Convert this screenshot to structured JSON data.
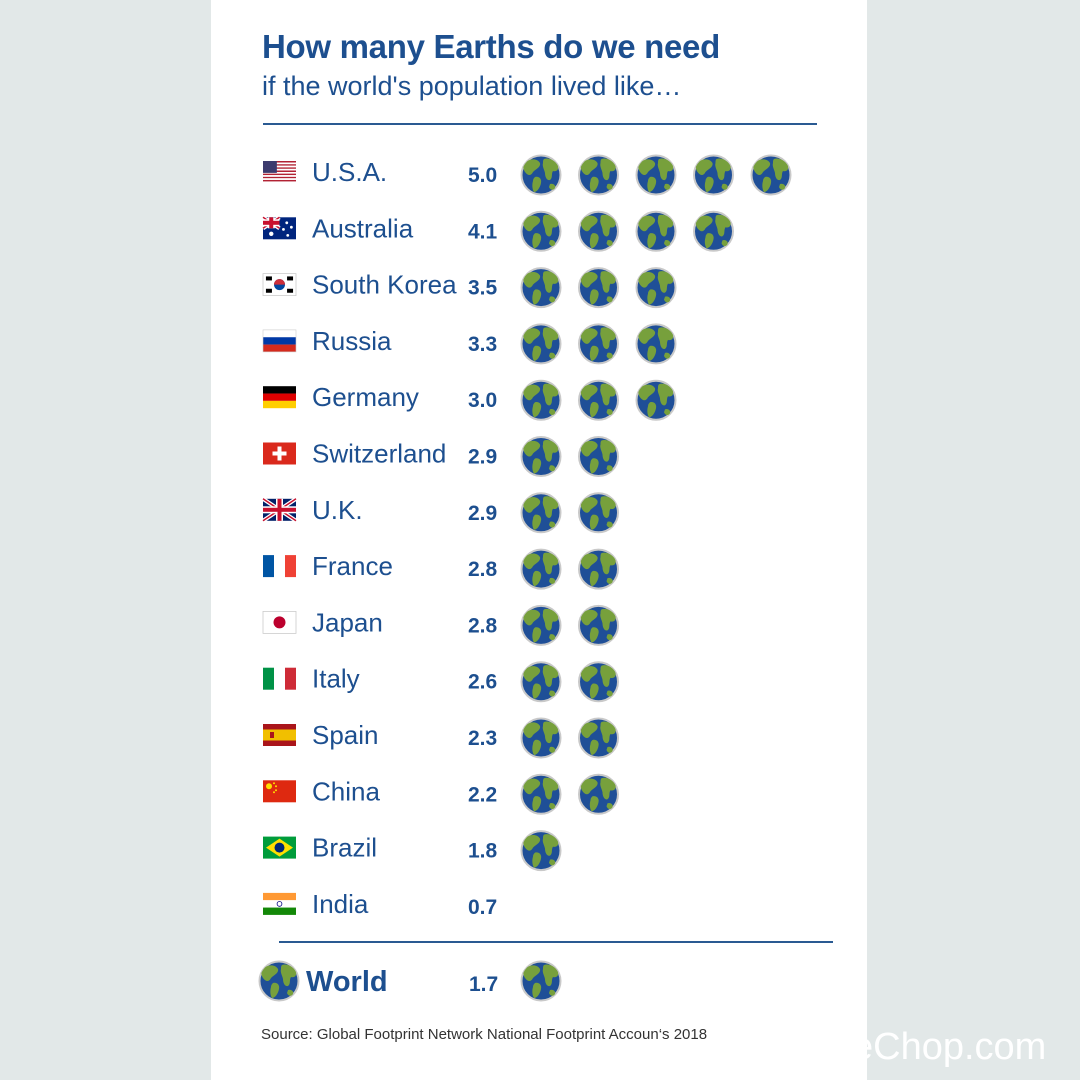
{
  "title": "How many Earths do we need",
  "subtitle": "if the world's population lived like…",
  "source": "Source: Global Footprint Network National Footprint Accoun‘s 2018",
  "watermark": "eChop.com",
  "colors": {
    "title": "#1d4f8f",
    "ocean": "#1f4f97",
    "land": "#77a03c",
    "globe_border": "#c9c9c9",
    "rule": "#2a5a92",
    "card": "#ffffff",
    "background": "#e2e8e8"
  },
  "chart_data": {
    "type": "bar",
    "unit_icon": "earth-globe-icon",
    "categories": [
      "U.S.A.",
      "Australia",
      "South Korea",
      "Russia",
      "Germany",
      "Switzerland",
      "U.K.",
      "France",
      "Japan",
      "Italy",
      "Spain",
      "China",
      "Brazil",
      "India"
    ],
    "values": [
      5.0,
      4.1,
      3.5,
      3.3,
      3.0,
      2.9,
      2.9,
      2.8,
      2.8,
      2.6,
      2.3,
      2.2,
      1.8,
      0.7
    ],
    "value_labels": [
      "5.0",
      "4.1",
      "3.5",
      "3.3",
      "3.0",
      "2.9",
      "2.9",
      "2.8",
      "2.8",
      "2.6",
      "2.3",
      "2.2",
      "1.8",
      "0.7"
    ],
    "flags": [
      "flag-usa",
      "flag-australia",
      "flag-south-korea",
      "flag-russia",
      "flag-germany",
      "flag-switzerland",
      "flag-uk",
      "flag-france",
      "flag-japan",
      "flag-italy",
      "flag-spain",
      "flag-china",
      "flag-brazil",
      "flag-india"
    ],
    "total": {
      "label": "World",
      "value": 1.7,
      "value_label": "1.7"
    }
  }
}
